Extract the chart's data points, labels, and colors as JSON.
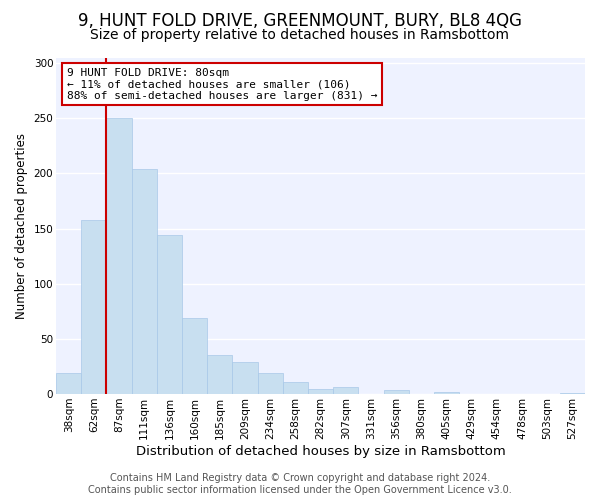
{
  "title": "9, HUNT FOLD DRIVE, GREENMOUNT, BURY, BL8 4QG",
  "subtitle": "Size of property relative to detached houses in Ramsbottom",
  "xlabel": "Distribution of detached houses by size in Ramsbottom",
  "ylabel": "Number of detached properties",
  "bar_labels": [
    "38sqm",
    "62sqm",
    "87sqm",
    "111sqm",
    "136sqm",
    "160sqm",
    "185sqm",
    "209sqm",
    "234sqm",
    "258sqm",
    "282sqm",
    "307sqm",
    "331sqm",
    "356sqm",
    "380sqm",
    "405sqm",
    "429sqm",
    "454sqm",
    "478sqm",
    "503sqm",
    "527sqm"
  ],
  "bar_values": [
    19,
    158,
    250,
    204,
    144,
    69,
    35,
    29,
    19,
    11,
    5,
    6,
    0,
    4,
    0,
    2,
    0,
    0,
    0,
    0,
    1
  ],
  "bar_color": "#c8dff0",
  "bar_edge_color": "#a8c8e8",
  "vline_color": "#cc0000",
  "annotation_title": "9 HUNT FOLD DRIVE: 80sqm",
  "annotation_line1": "← 11% of detached houses are smaller (106)",
  "annotation_line2": "88% of semi-detached houses are larger (831) →",
  "annotation_box_color": "#ffffff",
  "annotation_border_color": "#cc0000",
  "ylim": [
    0,
    305
  ],
  "yticks": [
    0,
    50,
    100,
    150,
    200,
    250,
    300
  ],
  "footer1": "Contains HM Land Registry data © Crown copyright and database right 2024.",
  "footer2": "Contains public sector information licensed under the Open Government Licence v3.0.",
  "background_color": "#ffffff",
  "plot_bg_color": "#eef2ff",
  "grid_color": "#ffffff",
  "title_fontsize": 12,
  "subtitle_fontsize": 10,
  "xlabel_fontsize": 9.5,
  "ylabel_fontsize": 8.5,
  "tick_fontsize": 7.5,
  "footer_fontsize": 7
}
